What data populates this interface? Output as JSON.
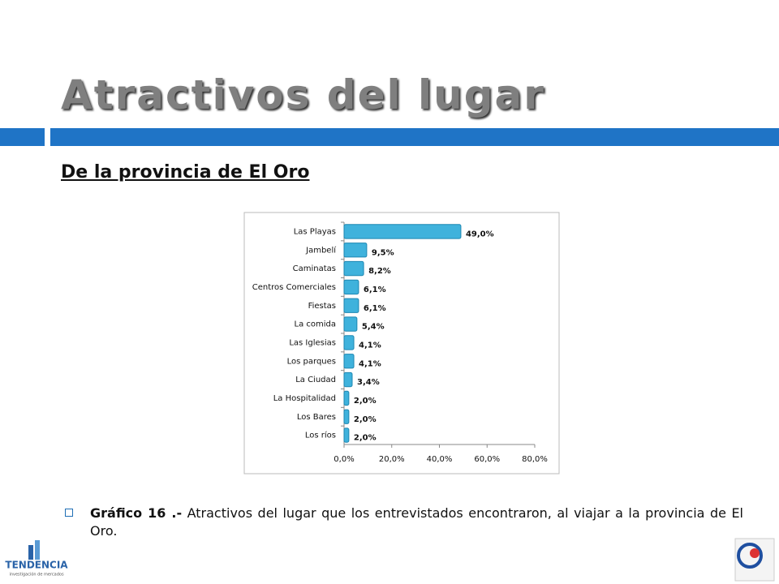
{
  "slide": {
    "title": "Atractivos del lugar",
    "subtitle": "De la provincia de El Oro",
    "caption_bold": "Gráfico 16 .-",
    "caption_text": "Atractivos del lugar que los entrevistados encontraron, al viajar a la provincia de El Oro.",
    "logo_text": "TENDENCIA",
    "logo_subtext": "investigación de mercados"
  },
  "chart_data": {
    "type": "hbar",
    "categories": [
      "Las Playas",
      "Jambelí",
      "Caminatas",
      "Centros Comerciales",
      "Fiestas",
      "La comida",
      "Las Iglesias",
      "Los parques",
      "La Ciudad",
      "La Hospitalidad",
      "Los Bares",
      "Los ríos"
    ],
    "values": [
      49.0,
      9.5,
      8.2,
      6.1,
      6.1,
      5.4,
      4.1,
      4.1,
      3.4,
      2.0,
      2.0,
      2.0
    ],
    "value_labels": [
      "49,0%",
      "9,5%",
      "8,2%",
      "6,1%",
      "6,1%",
      "5,4%",
      "4,1%",
      "4,1%",
      "3,4%",
      "2,0%",
      "2,0%",
      "2,0%"
    ],
    "color": "#3fb2dc",
    "xlim": [
      0,
      80
    ],
    "xticks": [
      {
        "value": 0,
        "label": "0,0%"
      },
      {
        "value": 20,
        "label": "20,0%"
      },
      {
        "value": 40,
        "label": "40,0%"
      },
      {
        "value": 60,
        "label": "60,0%"
      },
      {
        "value": 80,
        "label": "80,0%"
      }
    ],
    "grid": false
  }
}
